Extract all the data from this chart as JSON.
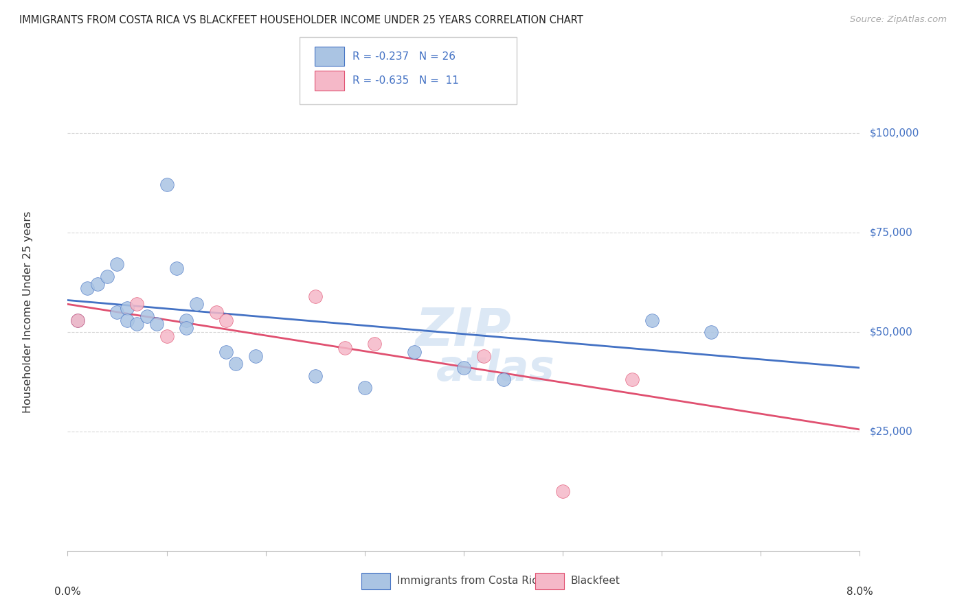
{
  "title": "IMMIGRANTS FROM COSTA RICA VS BLACKFEET HOUSEHOLDER INCOME UNDER 25 YEARS CORRELATION CHART",
  "source": "Source: ZipAtlas.com",
  "ylabel": "Householder Income Under 25 years",
  "xlim": [
    0.0,
    0.08
  ],
  "ylim": [
    -5000,
    115000
  ],
  "legend_blue_r": "-0.237",
  "legend_blue_n": "26",
  "legend_pink_r": "-0.635",
  "legend_pink_n": "11",
  "legend_label_blue": "Immigrants from Costa Rica",
  "legend_label_pink": "Blackfeet",
  "blue_scatter_x": [
    0.001,
    0.002,
    0.003,
    0.004,
    0.005,
    0.005,
    0.006,
    0.006,
    0.007,
    0.008,
    0.009,
    0.01,
    0.011,
    0.012,
    0.012,
    0.013,
    0.016,
    0.017,
    0.019,
    0.025,
    0.03,
    0.035,
    0.04,
    0.044,
    0.059,
    0.065
  ],
  "blue_scatter_y": [
    53000,
    61000,
    62000,
    64000,
    67000,
    55000,
    56000,
    53000,
    52000,
    54000,
    52000,
    87000,
    66000,
    53000,
    51000,
    57000,
    45000,
    42000,
    44000,
    39000,
    36000,
    45000,
    41000,
    38000,
    53000,
    50000
  ],
  "pink_scatter_x": [
    0.001,
    0.007,
    0.01,
    0.015,
    0.016,
    0.025,
    0.028,
    0.031,
    0.042,
    0.057,
    0.05
  ],
  "pink_scatter_y": [
    53000,
    57000,
    49000,
    55000,
    53000,
    59000,
    46000,
    47000,
    44000,
    38000,
    10000
  ],
  "blue_line_x": [
    0.0,
    0.08
  ],
  "blue_line_y": [
    58000,
    41000
  ],
  "pink_line_x": [
    0.0,
    0.08
  ],
  "pink_line_y": [
    57000,
    25500
  ],
  "bg_color": "#ffffff",
  "blue_dot_color": "#aac4e3",
  "pink_dot_color": "#f5b8c8",
  "blue_line_color": "#4472c4",
  "pink_line_color": "#e05070",
  "grid_color": "#d8d8d8",
  "title_color": "#222222",
  "right_label_color": "#4472c4",
  "marker_size": 200,
  "watermark_color": "#dce8f5"
}
